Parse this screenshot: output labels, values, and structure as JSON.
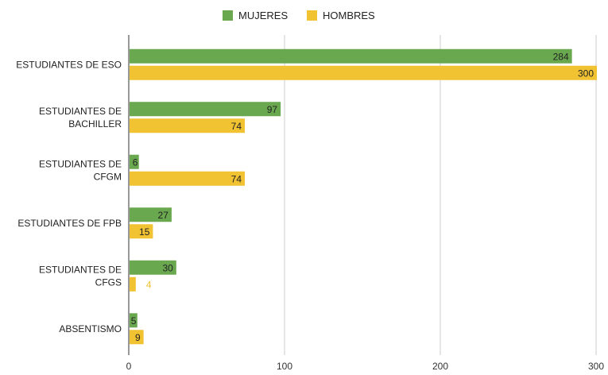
{
  "chart_data": {
    "type": "bar",
    "orientation": "horizontal",
    "categories": [
      [
        "ESTUDIANTES DE ESO"
      ],
      [
        "ESTUDIANTES DE",
        "BACHILLER"
      ],
      [
        "ESTUDIANTES DE",
        "CFGM"
      ],
      [
        "ESTUDIANTES DE FPB"
      ],
      [
        "ESTUDIANTES DE",
        "CFGS"
      ],
      [
        "ABSENTISMO"
      ]
    ],
    "series": [
      {
        "name": "MUJERES",
        "color": "#6aa84f",
        "values": [
          284,
          97,
          6,
          27,
          30,
          5
        ]
      },
      {
        "name": "HOMBRES",
        "color": "#f1c232",
        "values": [
          300,
          74,
          74,
          15,
          4,
          9
        ]
      }
    ],
    "xlim": [
      0,
      300
    ],
    "xticks": [
      0,
      100,
      200,
      300
    ],
    "grid": true,
    "legend": "top-center",
    "data_labels": true
  }
}
